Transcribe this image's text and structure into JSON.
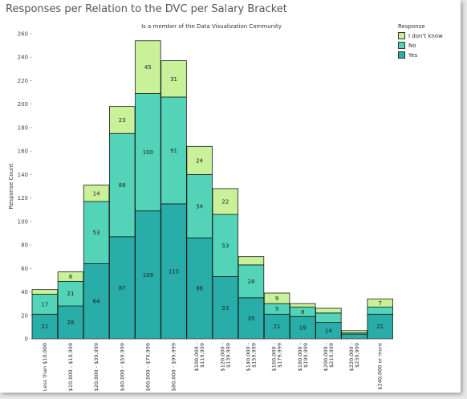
{
  "chart_data": {
    "type": "bar",
    "stacked": true,
    "title": "Responses per Relation to the DVC per Salary Bracket",
    "subtitle": "Is a member of the Data Visualization Community",
    "xlabel": "",
    "ylabel": "Response Count",
    "ylim": [
      0,
      260
    ],
    "yticks": [
      0,
      20,
      40,
      60,
      80,
      100,
      120,
      140,
      160,
      180,
      200,
      220,
      240,
      260
    ],
    "categories": [
      "Less than $10,000",
      "$10,000 - $19,999",
      "$20,000 - $39,999",
      "$40,000 - $59,999",
      "$60,000 - $79,999",
      "$80,000 - $99,999",
      "$100,000 - $119,999",
      "$120,000 - $139,999",
      "$140,000 - $159,999",
      "$160,000 - $179,999",
      "$180,000 - $199,999",
      "$200,000 - $219,999",
      "$220,000 - $239,999",
      "$240,000 or more"
    ],
    "series": [
      {
        "name": "Yes",
        "color": "#28ada8",
        "values": [
          21,
          28,
          64,
          87,
          109,
          115,
          86,
          53,
          35,
          21,
          19,
          14,
          4,
          21
        ]
      },
      {
        "name": "No",
        "color": "#53d4b9",
        "values": [
          17,
          21,
          53,
          88,
          100,
          91,
          54,
          53,
          28,
          9,
          8,
          8,
          1,
          6
        ]
      },
      {
        "name": "I don't know",
        "color": "#c9f19a",
        "values": [
          4,
          8,
          14,
          23,
          45,
          31,
          24,
          22,
          7,
          9,
          3,
          4,
          2,
          7
        ]
      }
    ],
    "data_labels": {
      "Yes": [
        "21",
        "28",
        "64",
        "87",
        "109",
        "115",
        "86",
        "53",
        "35",
        "21",
        "19",
        "14",
        "",
        "21"
      ],
      "No": [
        "17",
        "21",
        "53",
        "88",
        "100",
        "91",
        "54",
        "53",
        "28",
        "9",
        "8",
        "",
        "",
        ""
      ],
      "I don't know": [
        "",
        "8",
        "14",
        "23",
        "45",
        "31",
        "24",
        "22",
        "",
        "9",
        "",
        "",
        "",
        "7"
      ]
    },
    "legend": {
      "title": "Response",
      "position": "top-right",
      "items": [
        {
          "label": "I don't know",
          "color": "#c9f19a"
        },
        {
          "label": "No",
          "color": "#53d4b9"
        },
        {
          "label": "Yes",
          "color": "#28ada8"
        }
      ]
    },
    "grid": false
  }
}
